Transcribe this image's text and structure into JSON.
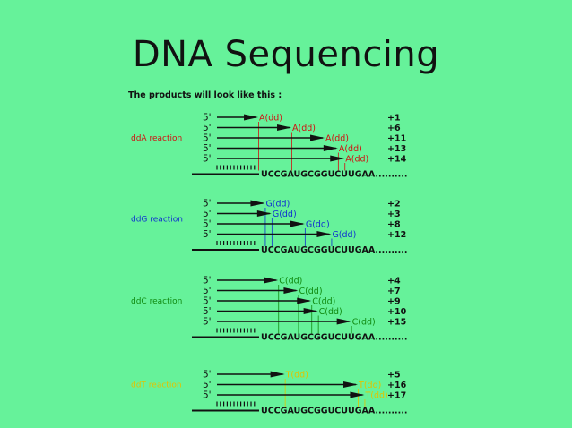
{
  "title": "DNA Sequencing",
  "intro": "The products will look like this :",
  "template_sequence": "UCCGAUGCGGUCUUGAA..........",
  "colors": {
    "background": "#66f29a",
    "A": "#d01010",
    "G": "#1030d0",
    "C": "#108a10",
    "T": "#e0c400"
  },
  "reactions": [
    {
      "id": "A",
      "label": "ddA reaction",
      "color": "#d01010",
      "products": [
        {
          "label": "A(dd)",
          "pos": "+1"
        },
        {
          "label": "A(dd)",
          "pos": "+6"
        },
        {
          "label": "A(dd)",
          "pos": "+11"
        },
        {
          "label": "A(dd)",
          "pos": "+13"
        },
        {
          "label": "A(dd)",
          "pos": "+14"
        }
      ]
    },
    {
      "id": "G",
      "label": "ddG reaction",
      "color": "#1030d0",
      "products": [
        {
          "label": "G(dd)",
          "pos": "+2"
        },
        {
          "label": "G(dd)",
          "pos": "+3"
        },
        {
          "label": "G(dd)",
          "pos": "+8"
        },
        {
          "label": "G(dd)",
          "pos": "+12"
        }
      ]
    },
    {
      "id": "C",
      "label": "ddC reaction",
      "color": "#108a10",
      "products": [
        {
          "label": "C(dd)",
          "pos": "+4"
        },
        {
          "label": "C(dd)",
          "pos": "+7"
        },
        {
          "label": "C(dd)",
          "pos": "+9"
        },
        {
          "label": "C(dd)",
          "pos": "+10"
        },
        {
          "label": "C(dd)",
          "pos": "+15"
        }
      ]
    },
    {
      "id": "T",
      "label": "ddT reaction",
      "color": "#e0c400",
      "products": [
        {
          "label": "T(dd)",
          "pos": "+5"
        },
        {
          "label": "T(dd)",
          "pos": "+16"
        },
        {
          "label": "T(dd)",
          "pos": "+17"
        }
      ]
    }
  ]
}
